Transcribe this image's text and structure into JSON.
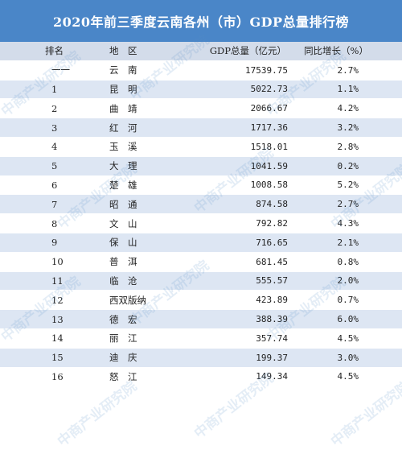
{
  "title": "2020年前三季度云南各州（市）GDP总量排行榜",
  "headers": {
    "rank": "排名",
    "region": "地　区",
    "gdp": "GDP总量（亿元）",
    "growth": "同比增长（%）"
  },
  "rows": [
    {
      "rank": "一一",
      "region": "云　南",
      "gdp": "17539.75",
      "growth": "2.7%"
    },
    {
      "rank": "1",
      "region": "昆　明",
      "gdp": "5022.73",
      "growth": "1.1%"
    },
    {
      "rank": "2",
      "region": "曲　靖",
      "gdp": "2066.67",
      "growth": "4.2%"
    },
    {
      "rank": "3",
      "region": "红　河",
      "gdp": "1717.36",
      "growth": "3.2%"
    },
    {
      "rank": "4",
      "region": "玉　溪",
      "gdp": "1518.01",
      "growth": "2.8%"
    },
    {
      "rank": "5",
      "region": "大　理",
      "gdp": "1041.59",
      "growth": "0.2%"
    },
    {
      "rank": "6",
      "region": "楚　雄",
      "gdp": "1008.58",
      "growth": "5.2%"
    },
    {
      "rank": "7",
      "region": "昭　通",
      "gdp": "874.58",
      "growth": "2.7%"
    },
    {
      "rank": "8",
      "region": "文　山",
      "gdp": "792.82",
      "growth": "4.3%"
    },
    {
      "rank": "9",
      "region": "保　山",
      "gdp": "716.65",
      "growth": "2.1%"
    },
    {
      "rank": "10",
      "region": "普　洱",
      "gdp": "681.45",
      "growth": "0.8%"
    },
    {
      "rank": "11",
      "region": "临　沧",
      "gdp": "555.57",
      "growth": "2.0%"
    },
    {
      "rank": "12",
      "region": "西双版纳",
      "gdp": "423.89",
      "growth": "0.7%"
    },
    {
      "rank": "13",
      "region": "德　宏",
      "gdp": "388.39",
      "growth": "6.0%"
    },
    {
      "rank": "14",
      "region": "丽　江",
      "gdp": "357.74",
      "growth": "4.5%"
    },
    {
      "rank": "15",
      "region": "迪　庆",
      "gdp": "199.37",
      "growth": "3.0%"
    },
    {
      "rank": "16",
      "region": "怒　江",
      "gdp": "149.34",
      "growth": "4.5%"
    }
  ],
  "watermark": "中商产业研究院",
  "colors": {
    "title_bg": "#4a86c8",
    "header_bg": "#d3dcea",
    "stripe": "#dde6f3"
  }
}
